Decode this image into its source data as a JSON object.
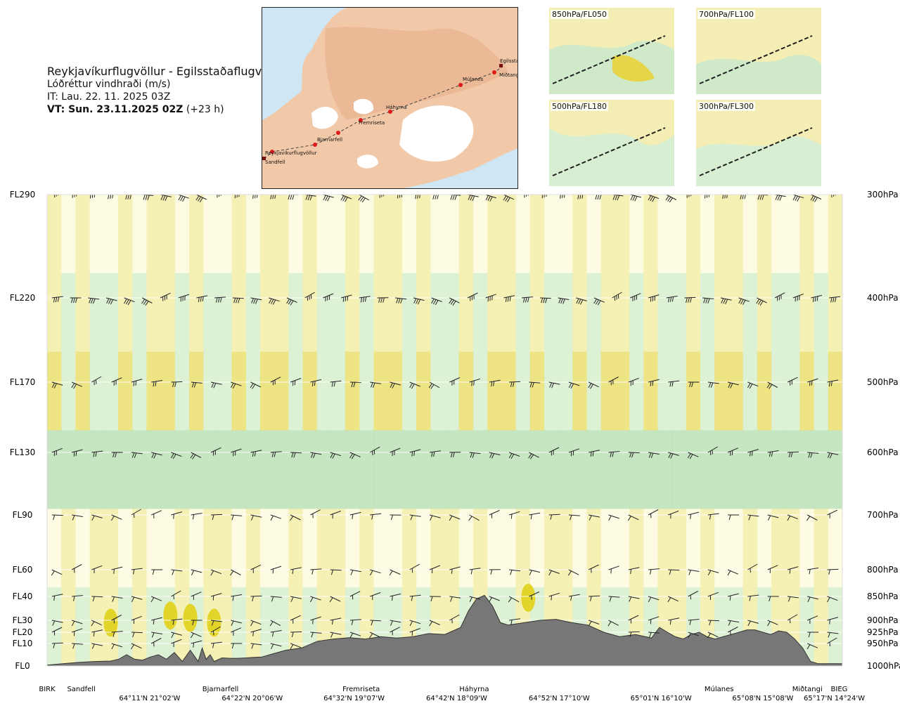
{
  "title": {
    "route": "Reykjavíkurflugvöllur - Egilsstaðaflugvöllur",
    "variable": "Lóðréttur vindhraði (m/s)",
    "issue_time": "IT: Lau. 22. 11. 2025 03Z",
    "valid_time": "VT: Sun. 23.11.2025 02Z",
    "lead": "(+23 h)"
  },
  "map": {
    "places": [
      "Reykjavíkurflugvöllur",
      "Sandfell",
      "Bjarnarfell",
      "Fremriseta",
      "Háhyrna",
      "Múlanes",
      "Miðtangi",
      "Egilsstaðir"
    ]
  },
  "panels": [
    {
      "label": "850hPa/FL050"
    },
    {
      "label": "700hPa/FL100"
    },
    {
      "label": "500hPa/FL180"
    },
    {
      "label": "300hPa/FL300"
    }
  ],
  "colors": {
    "terrain": "#777777",
    "updraft_weak": "#f4efb0",
    "updraft_mid": "#ece17a",
    "updraft_strong": "#e3d42a",
    "downdraft_weak": "#d9efd4",
    "downdraft_mid": "#bfe3bd",
    "downdraft_strong": "#8fc99a",
    "neutral": "#fdfbe2"
  },
  "chart_data": {
    "type": "heatmap",
    "title": "Lóðréttur vindhraði (m/s)",
    "left_axis": [
      {
        "label": "FL290",
        "pressure": 300
      },
      {
        "label": "FL220",
        "pressure": 400
      },
      {
        "label": "FL170",
        "pressure": 500
      },
      {
        "label": "FL130",
        "pressure": 600
      },
      {
        "label": "FL90",
        "pressure": 700
      },
      {
        "label": "FL60",
        "pressure": 800
      },
      {
        "label": "FL40",
        "pressure": 850
      },
      {
        "label": "FL30",
        "pressure": 900
      },
      {
        "label": "FL20",
        "pressure": 925
      },
      {
        "label": "FL10",
        "pressure": 950
      },
      {
        "label": "FL0",
        "pressure": 1000
      }
    ],
    "right_axis": [
      "300hPa",
      "400hPa",
      "500hPa",
      "600hPa",
      "700hPa",
      "800hPa",
      "850hPa",
      "900hPa",
      "925hPa",
      "950hPa",
      "1000hPa"
    ],
    "pressure_range": [
      1000,
      300
    ],
    "x_range": [
      0,
      100
    ],
    "waypoints": [
      {
        "name": "BIRK",
        "x": 0
      },
      {
        "name": "Sandfell",
        "x": 4.3
      },
      {
        "name": "Bjarnarfell",
        "x": 21.8
      },
      {
        "name": "Fremriseta",
        "x": 39.5
      },
      {
        "name": "Háhyrna",
        "x": 53.7
      },
      {
        "name": "Múlanes",
        "x": 84.5
      },
      {
        "name": "Miðtangi",
        "x": 95.6
      },
      {
        "name": "BIEG",
        "x": 99.6
      }
    ],
    "coords": [
      {
        "label": "64°11'N 21°02'W",
        "x": 12.9
      },
      {
        "label": "64°22'N 20°06'W",
        "x": 25.8
      },
      {
        "label": "64°32'N 19°07'W",
        "x": 38.6
      },
      {
        "label": "64°42'N 18°09'W",
        "x": 51.5
      },
      {
        "label": "64°52'N 17°10'W",
        "x": 64.4
      },
      {
        "label": "65°01'N 16°10'W",
        "x": 77.2
      },
      {
        "label": "65°08'N 15°08'W",
        "x": 90.0
      },
      {
        "label": "65°17'N 14°24'W",
        "x": 100
      }
    ],
    "terrain_profile": {
      "x": [
        0,
        2,
        4,
        6,
        8,
        9,
        10,
        11,
        12,
        13,
        14,
        15,
        16,
        17,
        18,
        19,
        19.5,
        20,
        20.5,
        21,
        22,
        23,
        24,
        25,
        26,
        27,
        28,
        30,
        32,
        34,
        36,
        38,
        40,
        42,
        44,
        46,
        48,
        50,
        52,
        53,
        54,
        55,
        56,
        57,
        58,
        60,
        62,
        64,
        66,
        68,
        70,
        72,
        74,
        76,
        77,
        78,
        79,
        80,
        81,
        82,
        83,
        84,
        85,
        86,
        87,
        88,
        89,
        90,
        91,
        92,
        93,
        94,
        95,
        96,
        97,
        98,
        99,
        100
      ],
      "pressure": [
        998,
        995,
        992,
        990,
        989,
        985,
        975,
        985,
        987,
        980,
        975,
        985,
        970,
        990,
        965,
        990,
        960,
        985,
        975,
        990,
        982,
        983,
        983,
        982,
        981,
        980,
        975,
        965,
        960,
        945,
        940,
        937,
        940,
        935,
        938,
        935,
        928,
        930,
        915,
        880,
        855,
        848,
        870,
        905,
        910,
        905,
        900,
        898,
        905,
        910,
        925,
        935,
        930,
        938,
        915,
        925,
        935,
        940,
        930,
        925,
        935,
        940,
        935,
        930,
        925,
        920,
        920,
        925,
        930,
        922,
        925,
        940,
        960,
        990,
        995,
        995,
        995,
        995
      ]
    },
    "wind_barb_levels": [
      300,
      400,
      500,
      600,
      700,
      800,
      850,
      900,
      925,
      950
    ],
    "legend": "none",
    "grid": true
  }
}
